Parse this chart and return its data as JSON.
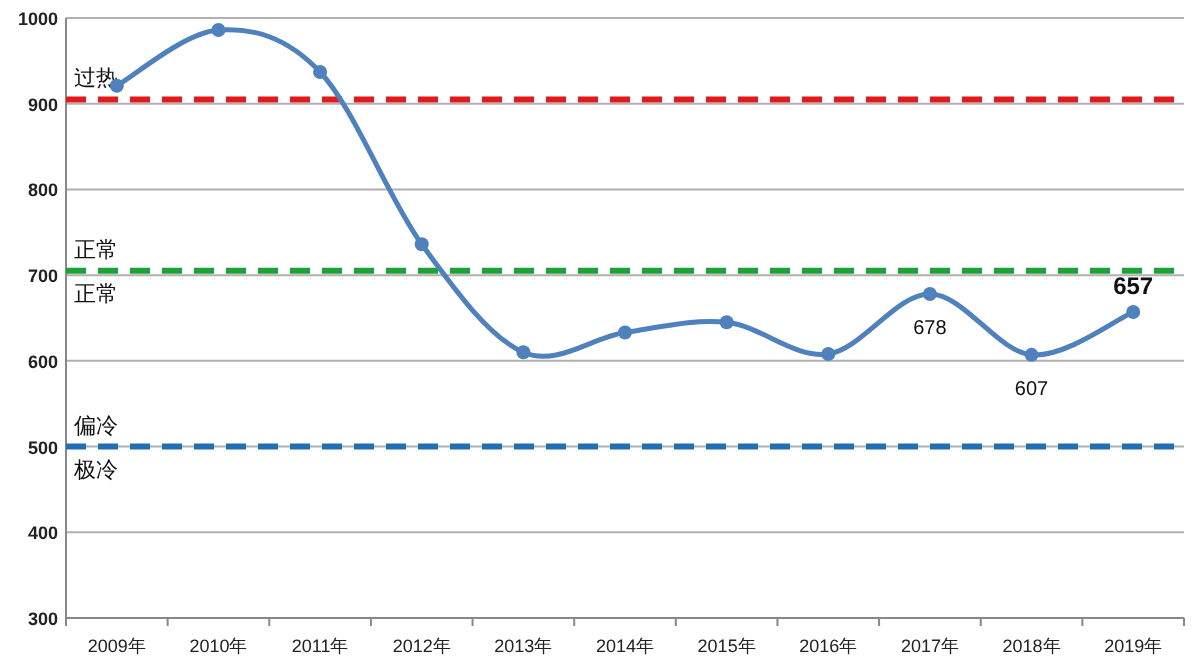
{
  "chart_data": {
    "type": "line",
    "categories": [
      "2009年",
      "2010年",
      "2011年",
      "2012年",
      "2013年",
      "2014年",
      "2015年",
      "2016年",
      "2017年",
      "2018年",
      "2019年"
    ],
    "series": [
      {
        "color": "#4f81bd",
        "values": [
          921,
          986,
          937,
          736,
          610,
          633,
          645,
          608,
          678,
          607,
          657
        ],
        "value_labels": [
          null,
          null,
          null,
          null,
          null,
          null,
          null,
          null,
          "678",
          "607",
          "657"
        ]
      }
    ],
    "ylim": [
      300,
      1000
    ],
    "yticks": [
      300,
      400,
      500,
      600,
      700,
      800,
      900,
      1000
    ],
    "grid": "y",
    "marker": "circle",
    "line_style": "solid",
    "ref_lines": [
      {
        "axis": "y",
        "value": 905,
        "label": "过热",
        "color": "#e31a1c",
        "line_style": "dashed"
      },
      {
        "axis": "y",
        "value": 705,
        "label": "正常",
        "color": "#1fa13a",
        "line_style": "dashed"
      },
      {
        "axis": "y",
        "value": 500,
        "label": "偏冷",
        "color": "#1f6fb4",
        "line_style": "dashed"
      }
    ],
    "annotations": [
      "正常",
      "极冷"
    ]
  }
}
